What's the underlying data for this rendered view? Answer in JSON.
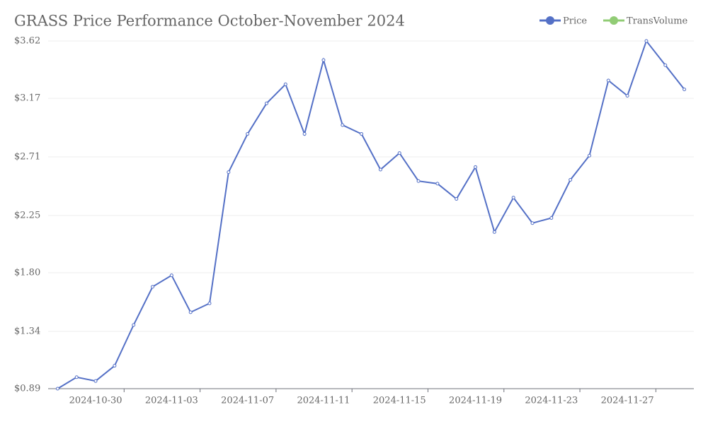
{
  "chart_data": {
    "type": "line",
    "title": "GRASS Price Performance October-November 2024",
    "categories": [
      null,
      null,
      "2024-10-30",
      null,
      null,
      null,
      "2024-11-03",
      null,
      null,
      null,
      "2024-11-07",
      null,
      null,
      null,
      "2024-11-11",
      null,
      null,
      null,
      "2024-11-15",
      null,
      null,
      null,
      "2024-11-19",
      null,
      null,
      null,
      "2024-11-23",
      null,
      null,
      null,
      "2024-11-27",
      null,
      null,
      null
    ],
    "series": [
      {
        "name": "Price",
        "color": "#5470c6",
        "values": [
          0.89,
          0.98,
          0.95,
          1.07,
          1.39,
          1.69,
          1.78,
          1.49,
          1.56,
          2.59,
          2.89,
          3.13,
          3.28,
          2.89,
          3.47,
          2.96,
          2.89,
          2.61,
          2.74,
          2.52,
          2.5,
          2.38,
          2.63,
          2.12,
          2.39,
          2.19,
          2.23,
          2.53,
          2.72,
          3.31,
          3.19,
          3.62,
          3.43,
          3.24
        ]
      },
      {
        "name": "TransVolume",
        "color": "#91cc75",
        "values": [
          null,
          null,
          null,
          null,
          null,
          null,
          null,
          null,
          null,
          null,
          null,
          null,
          null,
          null,
          null,
          null,
          null,
          null,
          null,
          null,
          null,
          null,
          null,
          null,
          null,
          null,
          null,
          null,
          null,
          null,
          null,
          null,
          null,
          null
        ]
      }
    ],
    "ylim": [
      0.89,
      3.62
    ],
    "yticks": [
      {
        "value": 0.89,
        "label": "$0.89"
      },
      {
        "value": 1.34,
        "label": "$1.34"
      },
      {
        "value": 1.8,
        "label": "$1.80"
      },
      {
        "value": 2.25,
        "label": "$2.25"
      },
      {
        "value": 2.71,
        "label": "$2.71"
      },
      {
        "value": 3.17,
        "label": "$3.17"
      },
      {
        "value": 3.62,
        "label": "$3.62"
      }
    ],
    "grid": true,
    "legend": "top-right"
  }
}
